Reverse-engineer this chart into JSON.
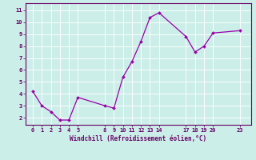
{
  "x": [
    0,
    1,
    2,
    3,
    4,
    5,
    8,
    9,
    10,
    11,
    12,
    13,
    14,
    17,
    18,
    19,
    20,
    23
  ],
  "y": [
    4.2,
    3.0,
    2.5,
    1.8,
    1.8,
    3.7,
    3.0,
    2.8,
    5.4,
    6.7,
    8.4,
    10.4,
    10.8,
    8.8,
    7.5,
    8.0,
    9.1,
    9.3
  ],
  "line_color": "#9900aa",
  "marker_color": "#9900aa",
  "bg_color": "#cceee8",
  "grid_color": "#ffffff",
  "axis_label_color": "#660066",
  "tick_color": "#660066",
  "spine_color": "#660066",
  "xlabel": "Windchill (Refroidissement éolien,°C)",
  "xticks": [
    0,
    1,
    2,
    3,
    4,
    5,
    8,
    9,
    10,
    11,
    12,
    13,
    14,
    17,
    18,
    19,
    20,
    23
  ],
  "yticks": [
    2,
    3,
    4,
    5,
    6,
    7,
    8,
    9,
    10,
    11
  ],
  "ylim": [
    1.4,
    11.6
  ],
  "xlim": [
    -0.8,
    24.2
  ]
}
